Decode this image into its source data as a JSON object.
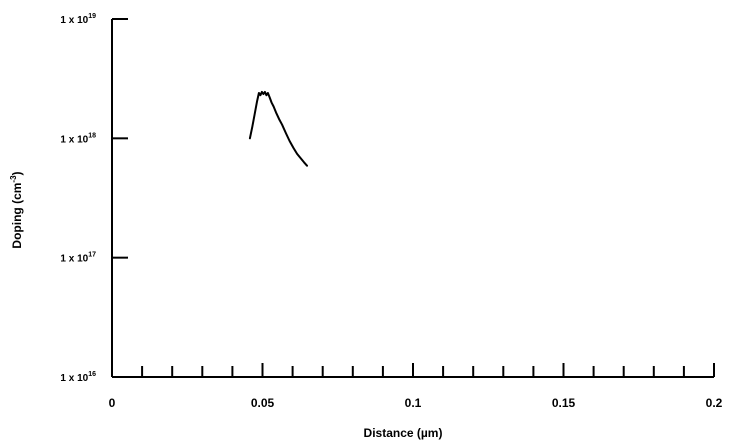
{
  "chart_data": {
    "type": "line",
    "title": "",
    "xlabel": "Distance (µm)",
    "ylabel_main": "Doping (cm",
    "ylabel_sup": "-3",
    "ylabel_close": ")",
    "xlim": [
      0,
      0.2
    ],
    "ylim": [
      1e+16,
      1e+19
    ],
    "y_scale": "log",
    "grid": false,
    "legend": "none",
    "x_ticks": [
      {
        "value": 0,
        "label": "0"
      },
      {
        "value": 0.05,
        "label": "0.05"
      },
      {
        "value": 0.1,
        "label": "0.1"
      },
      {
        "value": 0.15,
        "label": "0.15"
      },
      {
        "value": 0.2,
        "label": "0.2"
      }
    ],
    "x_minor_step": 0.01,
    "y_ticks": [
      {
        "value": 1e+16,
        "base": "1 x 10",
        "exp": "16"
      },
      {
        "value": 1e+17,
        "base": "1 x 10",
        "exp": "17"
      },
      {
        "value": 1e+18,
        "base": "1 x 10",
        "exp": "18"
      },
      {
        "value": 1e+19,
        "base": "1 x 10",
        "exp": "19"
      }
    ],
    "series": [
      {
        "color": "#000000",
        "x": [
          0.0458,
          0.0466,
          0.0474,
          0.0482,
          0.0488,
          0.0493,
          0.0498,
          0.0503,
          0.0508,
          0.0513,
          0.0518,
          0.0524,
          0.053,
          0.0537,
          0.0545,
          0.0555,
          0.0565,
          0.0578,
          0.059,
          0.0603,
          0.0615,
          0.0627,
          0.0638,
          0.0648
        ],
        "y": [
          1e+18,
          1.25e+18,
          1.6e+18,
          2.05e+18,
          2.4e+18,
          2.3e+18,
          2.45e+18,
          2.35e+18,
          2.45e+18,
          2.3e+18,
          2.4e+18,
          2.2e+18,
          2e+18,
          1.85e+18,
          1.65e+18,
          1.45e+18,
          1.3e+18,
          1.1e+18,
          9.5e+17,
          8.3e+17,
          7.4e+17,
          6.8e+17,
          6.3e+17,
          5.9e+17
        ]
      }
    ]
  }
}
